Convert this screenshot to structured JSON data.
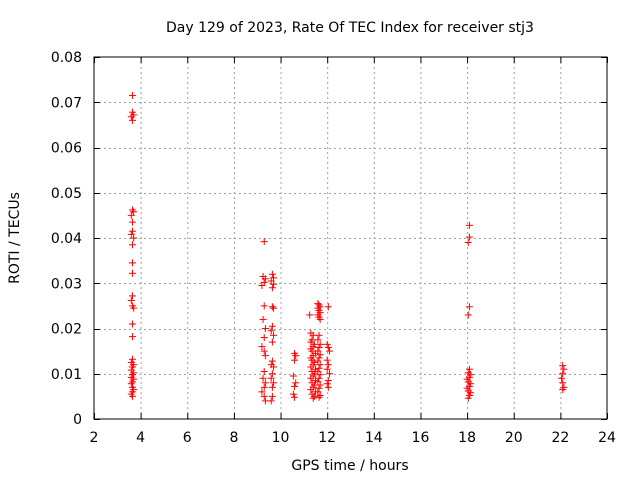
{
  "chart_data": {
    "type": "scatter",
    "title": "Day 129 of 2023, Rate Of TEC Index for receiver stj3",
    "xlabel": "GPS time / hours",
    "ylabel": "ROTI / TECUs",
    "xlim": [
      2,
      24
    ],
    "ylim": [
      0,
      0.08
    ],
    "xticks": [
      2,
      4,
      6,
      8,
      10,
      12,
      14,
      16,
      18,
      20,
      22,
      24
    ],
    "yticks": [
      0,
      0.01,
      0.02,
      0.03,
      0.04,
      0.05,
      0.06,
      0.07,
      0.08
    ],
    "xtick_labels": [
      "2",
      "4",
      "6",
      "8",
      "10",
      "12",
      "14",
      "16",
      "18",
      "20",
      "22",
      "24"
    ],
    "ytick_labels": [
      "0",
      "0.01",
      "0.02",
      "0.03",
      "0.04",
      "0.05",
      "0.06",
      "0.07",
      "0.08"
    ],
    "grid": true,
    "marker": "+",
    "marker_color": "#ff0000",
    "series": [
      {
        "points": [
          [
            3.65,
            0.0715
          ],
          [
            3.65,
            0.0678
          ],
          [
            3.7,
            0.0672
          ],
          [
            3.6,
            0.0668
          ],
          [
            3.65,
            0.066
          ],
          [
            3.65,
            0.0462
          ],
          [
            3.7,
            0.0458
          ],
          [
            3.6,
            0.045
          ],
          [
            3.65,
            0.0435
          ],
          [
            3.65,
            0.0415
          ],
          [
            3.6,
            0.0408
          ],
          [
            3.7,
            0.04
          ],
          [
            3.65,
            0.0385
          ],
          [
            3.65,
            0.0345
          ],
          [
            3.65,
            0.0322
          ],
          [
            3.65,
            0.0272
          ],
          [
            3.6,
            0.0262
          ],
          [
            3.65,
            0.025
          ],
          [
            3.7,
            0.0245
          ],
          [
            3.65,
            0.021
          ],
          [
            3.65,
            0.0182
          ],
          [
            3.65,
            0.0132
          ],
          [
            3.6,
            0.0125
          ],
          [
            3.7,
            0.012
          ],
          [
            3.65,
            0.0115
          ],
          [
            3.6,
            0.0108
          ],
          [
            3.7,
            0.0102
          ],
          [
            3.65,
            0.0098
          ],
          [
            3.6,
            0.0092
          ],
          [
            3.7,
            0.0088
          ],
          [
            3.65,
            0.0082
          ],
          [
            3.6,
            0.0078
          ],
          [
            3.65,
            0.007
          ],
          [
            3.7,
            0.0065
          ],
          [
            3.65,
            0.006
          ],
          [
            3.6,
            0.0055
          ],
          [
            3.65,
            0.005
          ],
          [
            9.3,
            0.0392
          ],
          [
            9.25,
            0.0315
          ],
          [
            9.35,
            0.031
          ],
          [
            9.3,
            0.0302
          ],
          [
            9.2,
            0.0295
          ],
          [
            9.3,
            0.025
          ],
          [
            9.25,
            0.022
          ],
          [
            9.35,
            0.02
          ],
          [
            9.3,
            0.018
          ],
          [
            9.2,
            0.016
          ],
          [
            9.3,
            0.015
          ],
          [
            9.35,
            0.014
          ],
          [
            9.3,
            0.0105
          ],
          [
            9.25,
            0.009
          ],
          [
            9.35,
            0.008
          ],
          [
            9.3,
            0.007
          ],
          [
            9.2,
            0.006
          ],
          [
            9.3,
            0.005
          ],
          [
            9.35,
            0.004
          ],
          [
            9.65,
            0.032
          ],
          [
            9.7,
            0.0312
          ],
          [
            9.6,
            0.0305
          ],
          [
            9.7,
            0.0298
          ],
          [
            9.65,
            0.029
          ],
          [
            9.65,
            0.0248
          ],
          [
            9.7,
            0.0245
          ],
          [
            9.65,
            0.0205
          ],
          [
            9.6,
            0.0195
          ],
          [
            9.7,
            0.0185
          ],
          [
            9.65,
            0.017
          ],
          [
            9.65,
            0.0128
          ],
          [
            9.6,
            0.012
          ],
          [
            9.7,
            0.0115
          ],
          [
            9.65,
            0.01
          ],
          [
            9.6,
            0.009
          ],
          [
            9.7,
            0.008
          ],
          [
            9.65,
            0.007
          ],
          [
            9.65,
            0.005
          ],
          [
            9.6,
            0.004
          ],
          [
            10.6,
            0.0145
          ],
          [
            10.65,
            0.014
          ],
          [
            10.6,
            0.013
          ],
          [
            10.55,
            0.0095
          ],
          [
            10.65,
            0.008
          ],
          [
            10.6,
            0.0072
          ],
          [
            10.55,
            0.0055
          ],
          [
            10.6,
            0.0048
          ],
          [
            11.25,
            0.023
          ],
          [
            11.3,
            0.019
          ],
          [
            11.4,
            0.0185
          ],
          [
            11.35,
            0.0175
          ],
          [
            11.3,
            0.017
          ],
          [
            11.45,
            0.0165
          ],
          [
            11.4,
            0.016
          ],
          [
            11.3,
            0.0155
          ],
          [
            11.35,
            0.015
          ],
          [
            11.5,
            0.0145
          ],
          [
            11.4,
            0.014
          ],
          [
            11.3,
            0.0135
          ],
          [
            11.35,
            0.013
          ],
          [
            11.45,
            0.0125
          ],
          [
            11.4,
            0.012
          ],
          [
            11.3,
            0.0115
          ],
          [
            11.5,
            0.011
          ],
          [
            11.35,
            0.0105
          ],
          [
            11.45,
            0.01
          ],
          [
            11.4,
            0.0095
          ],
          [
            11.3,
            0.009
          ],
          [
            11.5,
            0.0085
          ],
          [
            11.35,
            0.008
          ],
          [
            11.45,
            0.0075
          ],
          [
            11.4,
            0.007
          ],
          [
            11.3,
            0.0065
          ],
          [
            11.5,
            0.006
          ],
          [
            11.35,
            0.0055
          ],
          [
            11.45,
            0.005
          ],
          [
            11.4,
            0.0046
          ],
          [
            11.6,
            0.0255
          ],
          [
            11.65,
            0.0252
          ],
          [
            11.7,
            0.0248
          ],
          [
            11.6,
            0.0245
          ],
          [
            11.65,
            0.024
          ],
          [
            11.7,
            0.0235
          ],
          [
            11.6,
            0.023
          ],
          [
            11.65,
            0.0225
          ],
          [
            11.7,
            0.022
          ],
          [
            11.65,
            0.0185
          ],
          [
            11.6,
            0.0175
          ],
          [
            11.7,
            0.0165
          ],
          [
            11.65,
            0.0158
          ],
          [
            11.6,
            0.015
          ],
          [
            11.7,
            0.0142
          ],
          [
            11.65,
            0.0135
          ],
          [
            11.6,
            0.0128
          ],
          [
            11.7,
            0.012
          ],
          [
            11.65,
            0.0112
          ],
          [
            11.6,
            0.0105
          ],
          [
            11.7,
            0.0098
          ],
          [
            11.65,
            0.009
          ],
          [
            11.6,
            0.0082
          ],
          [
            11.7,
            0.0075
          ],
          [
            11.65,
            0.0068
          ],
          [
            11.6,
            0.006
          ],
          [
            11.7,
            0.0052
          ],
          [
            11.65,
            0.0048
          ],
          [
            12.05,
            0.0248
          ],
          [
            12.0,
            0.0165
          ],
          [
            12.05,
            0.0158
          ],
          [
            12.1,
            0.015
          ],
          [
            12.0,
            0.013
          ],
          [
            12.05,
            0.012
          ],
          [
            12.0,
            0.011
          ],
          [
            12.1,
            0.01
          ],
          [
            12.05,
            0.0085
          ],
          [
            12.0,
            0.0078
          ],
          [
            12.05,
            0.007
          ],
          [
            18.1,
            0.0428
          ],
          [
            18.1,
            0.0402
          ],
          [
            18.05,
            0.039
          ],
          [
            18.1,
            0.0248
          ],
          [
            18.05,
            0.023
          ],
          [
            18.1,
            0.011
          ],
          [
            18.05,
            0.0102
          ],
          [
            18.15,
            0.0098
          ],
          [
            18.1,
            0.0092
          ],
          [
            18.0,
            0.0088
          ],
          [
            18.05,
            0.0082
          ],
          [
            18.15,
            0.0078
          ],
          [
            18.1,
            0.0072
          ],
          [
            18.0,
            0.0068
          ],
          [
            18.05,
            0.0062
          ],
          [
            18.15,
            0.0058
          ],
          [
            18.1,
            0.0052
          ],
          [
            18.05,
            0.0046
          ],
          [
            22.1,
            0.0118
          ],
          [
            22.15,
            0.011
          ],
          [
            22.1,
            0.01
          ],
          [
            22.05,
            0.009
          ],
          [
            22.1,
            0.008
          ],
          [
            22.15,
            0.007
          ],
          [
            22.1,
            0.0065
          ]
        ]
      }
    ]
  }
}
